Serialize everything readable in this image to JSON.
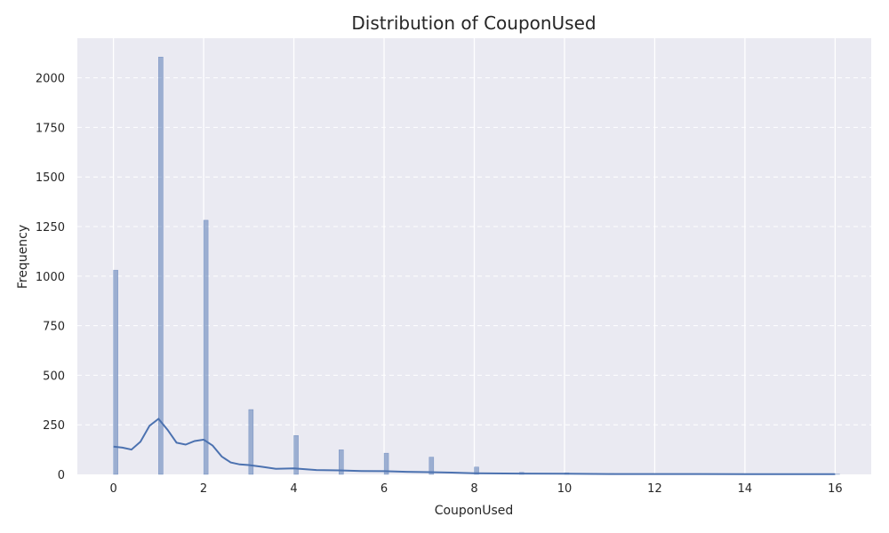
{
  "chart_data": {
    "type": "bar",
    "title": "Distribution of CouponUsed",
    "xlabel": "CouponUsed",
    "ylabel": "Frequency",
    "xlim": [
      -0.8,
      16.8
    ],
    "ylim": [
      0,
      2200
    ],
    "x_ticks": [
      0,
      2,
      4,
      6,
      8,
      10,
      12,
      14,
      16
    ],
    "y_ticks": [
      0,
      250,
      500,
      750,
      1000,
      1250,
      1500,
      1750,
      2000
    ],
    "grid": true,
    "bin_width": 0.1,
    "categories": [
      0,
      1,
      2,
      3,
      4,
      5,
      6,
      7,
      8,
      9,
      10,
      11,
      12,
      13,
      14,
      15,
      16
    ],
    "values": [
      1030,
      2105,
      1282,
      327,
      196,
      124,
      107,
      87,
      37,
      10,
      8,
      4,
      3,
      3,
      0,
      0,
      1
    ],
    "kde": {
      "x": [
        0,
        0.2,
        0.4,
        0.6,
        0.8,
        1.0,
        1.2,
        1.4,
        1.6,
        1.8,
        2.0,
        2.2,
        2.4,
        2.6,
        2.8,
        3.0,
        3.3,
        3.6,
        4.0,
        4.5,
        5.0,
        5.5,
        6.0,
        6.5,
        7.0,
        7.5,
        8.0,
        9.0,
        10.0,
        11.0,
        12.0,
        13.0,
        14.0,
        15.0,
        16.0
      ],
      "y": [
        140,
        135,
        125,
        165,
        245,
        280,
        225,
        160,
        150,
        168,
        175,
        145,
        90,
        60,
        50,
        47,
        38,
        28,
        30,
        22,
        20,
        17,
        16,
        13,
        11,
        9,
        6,
        4,
        3,
        2,
        2,
        2,
        1,
        1,
        1
      ]
    },
    "colors": {
      "bar": "#4c72b0",
      "kde": "#4c72b0",
      "background": "#eaeaf2",
      "grid": "#ffffff"
    }
  }
}
